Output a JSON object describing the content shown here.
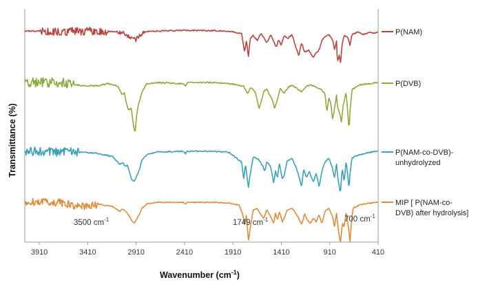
{
  "chart_data": {
    "type": "line",
    "xlabel": "Wavenumber (cm",
    "xlabel_sup": "-1",
    "xlabel_close": ")",
    "ylabel": "Transmittance (%)",
    "x_ticks": [
      3910,
      3410,
      2910,
      2410,
      1910,
      1410,
      910,
      410
    ],
    "xlim": [
      4060,
      410
    ],
    "legend_position": "right",
    "series": [
      {
        "name": "P(NAM)",
        "color": "#b5433f",
        "line1": "P(NAM)",
        "line2": "",
        "points": [
          [
            4060,
            0.0
          ],
          [
            3500,
            -0.5
          ],
          [
            3300,
            0.0
          ],
          [
            3100,
            -0.6
          ],
          [
            3020,
            -2.5
          ],
          [
            2980,
            -4.5
          ],
          [
            2950,
            -6.5
          ],
          [
            2920,
            -7.5
          ],
          [
            2890,
            -5.5
          ],
          [
            2860,
            -3
          ],
          [
            2800,
            -0.5
          ],
          [
            2600,
            0.2
          ],
          [
            2420,
            0.5
          ],
          [
            2100,
            0.3
          ],
          [
            1950,
            -0.5
          ],
          [
            1900,
            -1.0
          ],
          [
            1820,
            -2.5
          ],
          [
            1790,
            -18
          ],
          [
            1770,
            -8
          ],
          [
            1750,
            -22
          ],
          [
            1730,
            -6
          ],
          [
            1700,
            -4
          ],
          [
            1660,
            -8
          ],
          [
            1620,
            -2
          ],
          [
            1560,
            -10
          ],
          [
            1520,
            -3
          ],
          [
            1460,
            -14
          ],
          [
            1440,
            -7
          ],
          [
            1410,
            -12
          ],
          [
            1380,
            -4
          ],
          [
            1340,
            -6
          ],
          [
            1300,
            -3
          ],
          [
            1260,
            -14
          ],
          [
            1230,
            -21
          ],
          [
            1200,
            -10
          ],
          [
            1170,
            -18
          ],
          [
            1130,
            -16
          ],
          [
            1100,
            -20
          ],
          [
            1080,
            -22
          ],
          [
            1050,
            -19
          ],
          [
            1020,
            -16
          ],
          [
            990,
            -8
          ],
          [
            960,
            -5
          ],
          [
            920,
            -3
          ],
          [
            880,
            -7
          ],
          [
            860,
            -16
          ],
          [
            840,
            -8
          ],
          [
            830,
            -27
          ],
          [
            810,
            -19
          ],
          [
            800,
            -28
          ],
          [
            780,
            -10
          ],
          [
            760,
            -4
          ],
          [
            720,
            -6
          ],
          [
            700,
            -12
          ],
          [
            680,
            -3
          ],
          [
            620,
            -1
          ],
          [
            560,
            -3
          ],
          [
            500,
            -1
          ],
          [
            450,
            -2
          ],
          [
            410,
            -1
          ]
        ]
      },
      {
        "name": "P(DVB)",
        "color": "#8caa3b",
        "line1": "P(DVB)",
        "line2": "",
        "points": [
          [
            4060,
            0.0
          ],
          [
            3700,
            0.2
          ],
          [
            3550,
            -1.8
          ],
          [
            3400,
            -3.0
          ],
          [
            3300,
            -2.5
          ],
          [
            3200,
            -1.0
          ],
          [
            3100,
            -3
          ],
          [
            3080,
            -6
          ],
          [
            3060,
            -10
          ],
          [
            3030,
            -9
          ],
          [
            3010,
            -18
          ],
          [
            2990,
            -23
          ],
          [
            2960,
            -22
          ],
          [
            2930,
            -40
          ],
          [
            2920,
            -42
          ],
          [
            2905,
            -28
          ],
          [
            2890,
            -20
          ],
          [
            2870,
            -14
          ],
          [
            2850,
            -8
          ],
          [
            2800,
            -1
          ],
          [
            2700,
            0
          ],
          [
            2420,
            -1
          ],
          [
            2400,
            -3
          ],
          [
            2380,
            0
          ],
          [
            2100,
            0
          ],
          [
            1950,
            -1
          ],
          [
            1800,
            -3
          ],
          [
            1760,
            -9
          ],
          [
            1720,
            -4
          ],
          [
            1680,
            -8
          ],
          [
            1640,
            -22
          ],
          [
            1610,
            -14
          ],
          [
            1590,
            -7
          ],
          [
            1560,
            -6
          ],
          [
            1500,
            -15
          ],
          [
            1480,
            -22
          ],
          [
            1450,
            -14
          ],
          [
            1420,
            -5
          ],
          [
            1380,
            -9
          ],
          [
            1340,
            -4
          ],
          [
            1300,
            -2
          ],
          [
            1250,
            -5
          ],
          [
            1200,
            -8
          ],
          [
            1150,
            -3
          ],
          [
            1100,
            -2
          ],
          [
            1050,
            -4
          ],
          [
            1000,
            -6
          ],
          [
            960,
            -9
          ],
          [
            940,
            -25
          ],
          [
            920,
            -13
          ],
          [
            900,
            -17
          ],
          [
            880,
            -32
          ],
          [
            860,
            -22
          ],
          [
            840,
            -11
          ],
          [
            830,
            -20
          ],
          [
            800,
            -28
          ],
          [
            790,
            -34
          ],
          [
            770,
            -19
          ],
          [
            740,
            -8
          ],
          [
            710,
            -40
          ],
          [
            700,
            -24
          ],
          [
            680,
            -6
          ],
          [
            600,
            -2
          ],
          [
            500,
            -1
          ],
          [
            450,
            0
          ],
          [
            410,
            0
          ]
        ]
      },
      {
        "name": "P(NAM-co-DVB)-unhydrolyzed",
        "color": "#3a9fb8",
        "line1": "P(NAM-co-DVB)-",
        "line2": "unhydrolyzed",
        "points": [
          [
            4060,
            0.0
          ],
          [
            3700,
            -0.5
          ],
          [
            3450,
            -1
          ],
          [
            3300,
            -2
          ],
          [
            3150,
            -5
          ],
          [
            3080,
            -12
          ],
          [
            3050,
            -10
          ],
          [
            3020,
            -14
          ],
          [
            3000,
            -12
          ],
          [
            2960,
            -25
          ],
          [
            2930,
            -28
          ],
          [
            2900,
            -22
          ],
          [
            2870,
            -15
          ],
          [
            2850,
            -8
          ],
          [
            2800,
            -3
          ],
          [
            2700,
            -0.5
          ],
          [
            2420,
            0
          ],
          [
            2400,
            -2
          ],
          [
            2380,
            0
          ],
          [
            2100,
            0
          ],
          [
            1950,
            -1
          ],
          [
            1820,
            -10
          ],
          [
            1800,
            -25
          ],
          [
            1780,
            -12
          ],
          [
            1750,
            -33
          ],
          [
            1730,
            -20
          ],
          [
            1700,
            -5
          ],
          [
            1650,
            -7
          ],
          [
            1610,
            -12
          ],
          [
            1580,
            -18
          ],
          [
            1560,
            -9
          ],
          [
            1520,
            -14
          ],
          [
            1490,
            -29
          ],
          [
            1470,
            -18
          ],
          [
            1450,
            -24
          ],
          [
            1430,
            -11
          ],
          [
            1400,
            -25
          ],
          [
            1380,
            -22
          ],
          [
            1350,
            -9
          ],
          [
            1300,
            -6
          ],
          [
            1260,
            -14
          ],
          [
            1230,
            -22
          ],
          [
            1200,
            -32
          ],
          [
            1180,
            -16
          ],
          [
            1150,
            -24
          ],
          [
            1120,
            -18
          ],
          [
            1100,
            -24
          ],
          [
            1080,
            -28
          ],
          [
            1050,
            -20
          ],
          [
            1020,
            -32
          ],
          [
            990,
            -18
          ],
          [
            960,
            -10
          ],
          [
            920,
            -6
          ],
          [
            880,
            -16
          ],
          [
            860,
            -24
          ],
          [
            840,
            -12
          ],
          [
            820,
            -28
          ],
          [
            800,
            -38
          ],
          [
            780,
            -15
          ],
          [
            760,
            -28
          ],
          [
            740,
            -8
          ],
          [
            710,
            -34
          ],
          [
            700,
            -20
          ],
          [
            680,
            -6
          ],
          [
            600,
            -3
          ],
          [
            500,
            -1
          ],
          [
            450,
            0
          ],
          [
            410,
            0
          ]
        ]
      },
      {
        "name": "MIP [ P(NAM-co-DVB) after hydrolysis]",
        "color": "#e08a3c",
        "line1": "MIP [ P(NAM-co-",
        "line2": "DVB) after hydrolysis]",
        "points": [
          [
            4060,
            0.0
          ],
          [
            3700,
            -1
          ],
          [
            3500,
            -6
          ],
          [
            3400,
            -5
          ],
          [
            3300,
            -3
          ],
          [
            3150,
            -6
          ],
          [
            3080,
            -12
          ],
          [
            3050,
            -9
          ],
          [
            3000,
            -14
          ],
          [
            2960,
            -22
          ],
          [
            2930,
            -26
          ],
          [
            2900,
            -20
          ],
          [
            2870,
            -14
          ],
          [
            2850,
            -8
          ],
          [
            2800,
            -3
          ],
          [
            2700,
            -1
          ],
          [
            2420,
            -1
          ],
          [
            2400,
            -3
          ],
          [
            2380,
            -1
          ],
          [
            2100,
            -1
          ],
          [
            1950,
            -2
          ],
          [
            1850,
            -4
          ],
          [
            1810,
            -14
          ],
          [
            1790,
            -28
          ],
          [
            1770,
            -16
          ],
          [
            1749,
            -48
          ],
          [
            1730,
            -30
          ],
          [
            1700,
            -10
          ],
          [
            1660,
            -8
          ],
          [
            1620,
            -16
          ],
          [
            1590,
            -20
          ],
          [
            1560,
            -10
          ],
          [
            1520,
            -18
          ],
          [
            1490,
            -26
          ],
          [
            1470,
            -14
          ],
          [
            1450,
            -22
          ],
          [
            1430,
            -12
          ],
          [
            1400,
            -24
          ],
          [
            1380,
            -20
          ],
          [
            1350,
            -10
          ],
          [
            1300,
            -8
          ],
          [
            1260,
            -14
          ],
          [
            1230,
            -20
          ],
          [
            1200,
            -28
          ],
          [
            1170,
            -15
          ],
          [
            1140,
            -22
          ],
          [
            1110,
            -26
          ],
          [
            1080,
            -20
          ],
          [
            1050,
            -24
          ],
          [
            1020,
            -16
          ],
          [
            990,
            -26
          ],
          [
            960,
            -12
          ],
          [
            920,
            -8
          ],
          [
            880,
            -18
          ],
          [
            860,
            -30
          ],
          [
            840,
            -14
          ],
          [
            820,
            -34
          ],
          [
            800,
            -50
          ],
          [
            780,
            -26
          ],
          [
            760,
            -30
          ],
          [
            740,
            -12
          ],
          [
            720,
            -28
          ],
          [
            700,
            -48
          ],
          [
            690,
            -30
          ],
          [
            670,
            -8
          ],
          [
            600,
            -4
          ],
          [
            500,
            -2
          ],
          [
            450,
            -1
          ],
          [
            410,
            -1
          ]
        ]
      }
    ],
    "annotations": [
      {
        "label": "3500 cm",
        "sup": "-1",
        "x": 3500
      },
      {
        "label": "1749 cm",
        "sup": "-1",
        "x": 1749
      },
      {
        "label": "700 cm",
        "sup": "-1",
        "x": 700
      }
    ]
  }
}
